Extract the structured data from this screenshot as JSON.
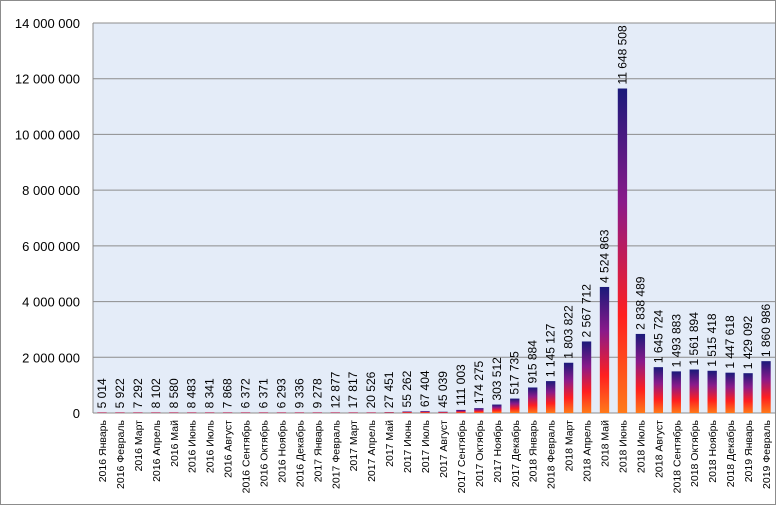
{
  "chart_data": {
    "type": "bar",
    "title": "",
    "xlabel": "",
    "ylabel": "",
    "ylim": [
      0,
      14000000
    ],
    "yticks": [
      0,
      2000000,
      4000000,
      6000000,
      8000000,
      10000000,
      12000000,
      14000000
    ],
    "ytick_labels": [
      "0",
      "2 000 000",
      "4 000 000",
      "6 000 000",
      "8 000 000",
      "10 000 000",
      "12 000 000",
      "14 000 000"
    ],
    "grid": "horizontal",
    "plot_background": "#e4ecf8",
    "bar_gradient": [
      "#ff7a1a",
      "#ff1f1f",
      "#8a1a8a",
      "#1a1a7a"
    ],
    "categories": [
      "2016 Январь",
      "2016 Февраль",
      "2016 Март",
      "2016 Апрель",
      "2016 Май",
      "2016 Июнь",
      "2016 Июль",
      "2016 Август",
      "2016 Сентябрь",
      "2016 Октябрь",
      "2016 Ноябрь",
      "2016 Декабрь",
      "2017 Январь",
      "2017 Февраль",
      "2017 Март",
      "2017 Апрель",
      "2017 Май",
      "2017 Июнь",
      "2017 Июль",
      "2017 Август",
      "2017 Сентябрь",
      "2017 Октябрь",
      "2017 Ноябрь",
      "2017 Декабрь",
      "2018 Январь",
      "2018 Февраль",
      "2018 Март",
      "2018 Апрель",
      "2018 Май",
      "2018 Июнь",
      "2018 Июль",
      "2018 Август",
      "2018 Сентябрь",
      "2018 Октябрь",
      "2018 Ноябрь",
      "2018 Декабрь",
      "2019 Январь",
      "2019 Февраль"
    ],
    "values": [
      5014,
      5922,
      7292,
      8102,
      8580,
      8483,
      8341,
      7868,
      6372,
      6371,
      6293,
      9336,
      9278,
      12877,
      17817,
      20526,
      27451,
      55262,
      67404,
      45039,
      111003,
      174275,
      303512,
      517735,
      915884,
      1145127,
      1803822,
      2567712,
      4524863,
      11648508,
      2838489,
      1645724,
      1493883,
      1561894,
      1515418,
      1447618,
      1429092,
      1860986
    ],
    "data_labels": [
      "5 014",
      "5 922",
      "7 292",
      "8 102",
      "8 580",
      "8 483",
      "8 341",
      "7 868",
      "6 372",
      "6 371",
      "6 293",
      "9 336",
      "9 278",
      "12 877",
      "17 817",
      "20 526",
      "27 451",
      "55 262",
      "67 404",
      "45 039",
      "111 003",
      "174 275",
      "303 512",
      "517 735",
      "915 884",
      "1 145 127",
      "1 803 822",
      "2 567 712",
      "4 524 863",
      "11 648 508",
      "2 838 489",
      "1 645 724",
      "1 493 883",
      "1 561 894",
      "1 515 418",
      "1 447 618",
      "1 429 092",
      "1 860 986"
    ]
  }
}
